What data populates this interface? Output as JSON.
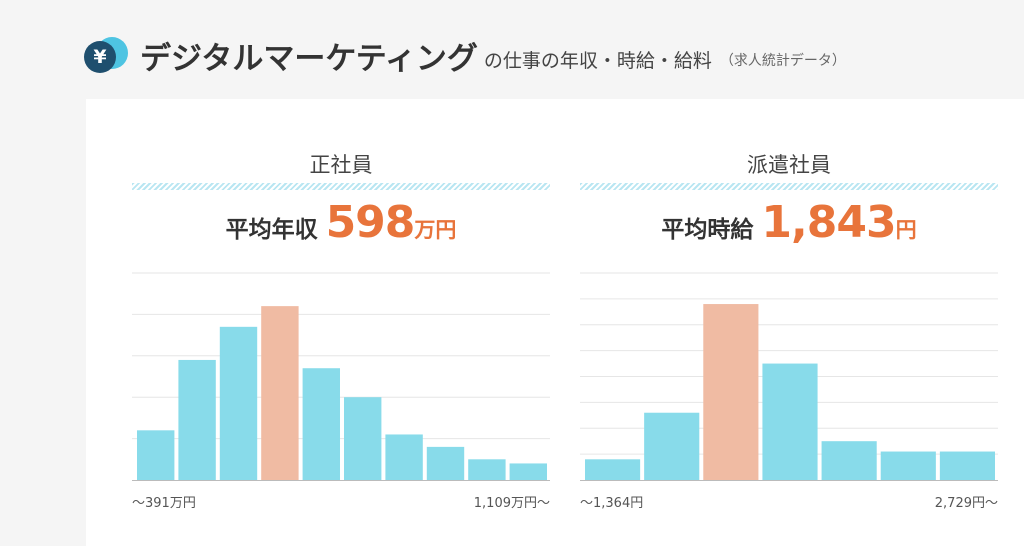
{
  "header": {
    "title": "デジタルマーケティング",
    "title_rest": "の仕事の年収・時給・給料",
    "note": "（求人統計データ）",
    "icon_char": "¥",
    "icon_name": "yen-coin-icon"
  },
  "colors": {
    "bar": "#88dbea",
    "highlight": "#f0bba3",
    "accent": "#e8743b",
    "grid": "#e6e6e6",
    "baseline": "#bbbbbb"
  },
  "chart_data": [
    {
      "type": "bar",
      "title": "正社員",
      "avg_label": "平均年収",
      "avg_value": "598",
      "avg_unit": "万円",
      "range_min_label": "〜391万円",
      "range_max_label": "1,109万円〜",
      "values": [
        12,
        29,
        37,
        42,
        27,
        20,
        11,
        8,
        5,
        4
      ],
      "highlight_index": 3,
      "ylim": [
        0,
        50
      ],
      "grid_lines": 5
    },
    {
      "type": "bar",
      "title": "派遣社員",
      "avg_label": "平均時給",
      "avg_value": "1,843",
      "avg_unit": "円",
      "range_min_label": "〜1,364円",
      "range_max_label": "2,729円〜",
      "values": [
        8,
        26,
        68,
        45,
        15,
        11,
        11
      ],
      "highlight_index": 2,
      "ylim": [
        0,
        80
      ],
      "grid_lines": 8
    }
  ]
}
